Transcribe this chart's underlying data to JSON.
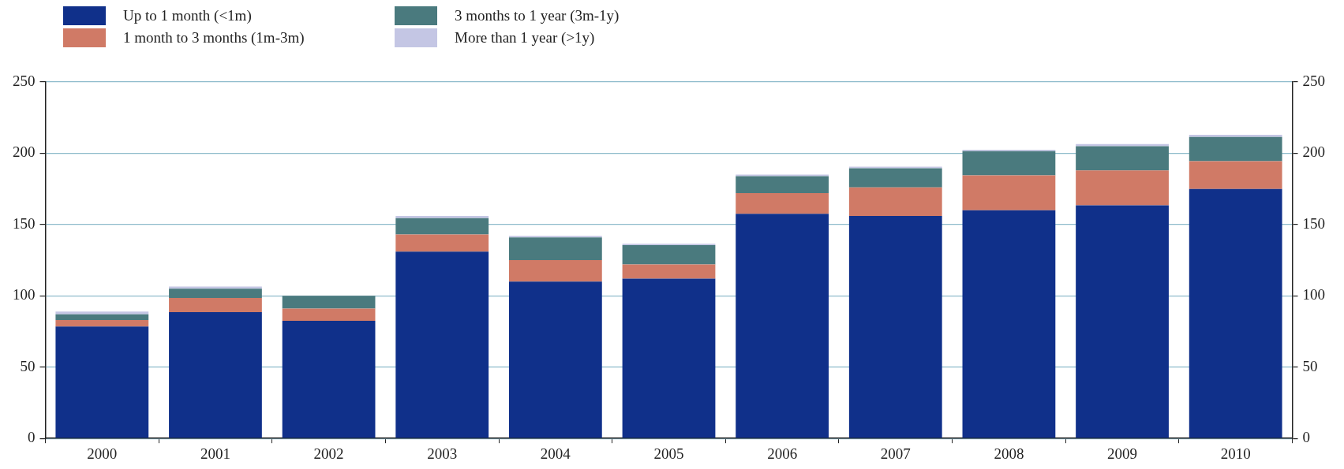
{
  "chart_data": {
    "type": "bar",
    "stacked": true,
    "categories": [
      "2000",
      "2001",
      "2002",
      "2003",
      "2004",
      "2005",
      "2006",
      "2007",
      "2008",
      "2009",
      "2010"
    ],
    "series": [
      {
        "name": "Up to 1 month (<1m)",
        "color": "#10308a",
        "values": [
          78.5,
          88.5,
          82.5,
          131,
          110,
          112,
          157.5,
          156,
          160,
          163.5,
          175
        ]
      },
      {
        "name": "1 month to 3 months (1m-3m)",
        "color": "#d07a66",
        "values": [
          4.5,
          10,
          8.5,
          12,
          15,
          10,
          14.5,
          20,
          24.5,
          24.5,
          19.5
        ]
      },
      {
        "name": "3 months to 1 year (3m-1y)",
        "color": "#4a7a7e",
        "values": [
          4,
          6.5,
          9,
          11.5,
          16,
          13.5,
          12,
          13.5,
          17,
          17,
          17
        ]
      },
      {
        "name": "More than 1 year (>1y)",
        "color": "#c4c6e4",
        "values": [
          2,
          1.5,
          0,
          1.5,
          1,
          1,
          1,
          1,
          1,
          1.5,
          1.5
        ]
      }
    ],
    "ylim": [
      0,
      250
    ],
    "yticks": [
      0,
      50,
      100,
      150,
      200,
      250
    ],
    "y2lim": [
      0,
      250
    ],
    "y2ticks": [
      0,
      50,
      100,
      150,
      200,
      250
    ],
    "grid": "y",
    "legend": "top left"
  }
}
